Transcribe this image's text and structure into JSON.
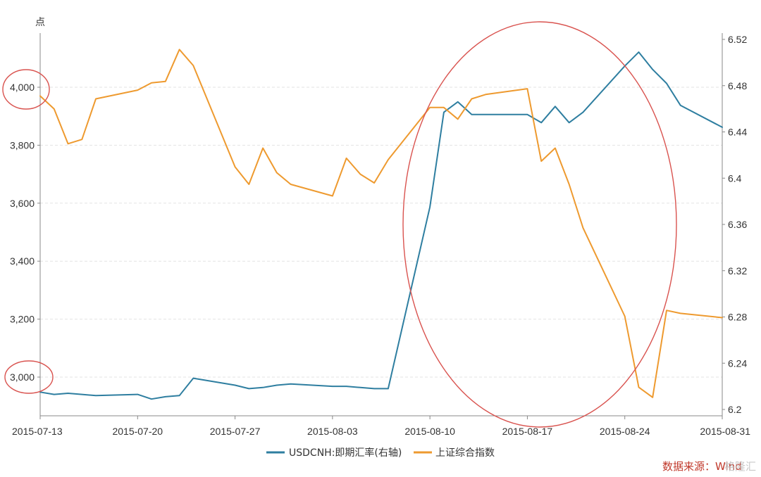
{
  "chart_data": {
    "type": "line",
    "left_axis_unit": "点",
    "x": [
      "2015-07-13",
      "2015-07-14",
      "2015-07-15",
      "2015-07-16",
      "2015-07-17",
      "2015-07-20",
      "2015-07-21",
      "2015-07-22",
      "2015-07-23",
      "2015-07-24",
      "2015-07-27",
      "2015-07-28",
      "2015-07-29",
      "2015-07-30",
      "2015-07-31",
      "2015-08-03",
      "2015-08-04",
      "2015-08-05",
      "2015-08-06",
      "2015-08-07",
      "2015-08-10",
      "2015-08-11",
      "2015-08-12",
      "2015-08-13",
      "2015-08-14",
      "2015-08-17",
      "2015-08-18",
      "2015-08-19",
      "2015-08-20",
      "2015-08-21",
      "2015-08-24",
      "2015-08-25",
      "2015-08-26",
      "2015-08-27",
      "2015-08-28",
      "2015-08-31"
    ],
    "x_ticks": [
      "2015-07-13",
      "2015-07-20",
      "2015-07-27",
      "2015-08-03",
      "2015-08-10",
      "2015-08-17",
      "2015-08-24",
      "2015-08-31"
    ],
    "xlim": [
      "2015-07-13",
      "2015-08-31"
    ],
    "y_left": {
      "ticks": [
        "3,000",
        "3,200",
        "3,400",
        "3,600",
        "3,800",
        "4,000"
      ],
      "lim": [
        2870,
        4200
      ],
      "tick_values": [
        3000,
        3200,
        3400,
        3600,
        3800,
        4000
      ]
    },
    "y_right": {
      "ticks": [
        "6.2",
        "6.24",
        "6.28",
        "6.32",
        "6.36",
        "6.4",
        "6.44",
        "6.48",
        "6.52"
      ],
      "lim": [
        6.2,
        6.52
      ],
      "tick_values": [
        6.2,
        6.24,
        6.28,
        6.32,
        6.36,
        6.4,
        6.44,
        6.48,
        6.52
      ]
    },
    "grid": true,
    "legend_position": "bottom",
    "series": [
      {
        "name": "USDCNH:即期汇率(右轴)",
        "axis": "right",
        "color": "#2e7ea0",
        "values": [
          6.215,
          6.213,
          6.214,
          6.213,
          6.212,
          6.213,
          6.209,
          6.211,
          6.212,
          6.227,
          6.221,
          6.218,
          6.219,
          6.221,
          6.222,
          6.22,
          6.22,
          6.219,
          6.218,
          6.218,
          6.375,
          6.457,
          6.466,
          6.455,
          6.455,
          6.455,
          6.448,
          6.462,
          6.448,
          6.457,
          6.497,
          6.509,
          6.494,
          6.482,
          6.463,
          6.444
        ]
      },
      {
        "name": "上证综合指数",
        "axis": "left",
        "color": "#ee9a2f",
        "values": [
          3970,
          3925,
          3805,
          3820,
          3960,
          3990,
          4015,
          4020,
          4130,
          4075,
          3725,
          3665,
          3790,
          3705,
          3665,
          3625,
          3755,
          3700,
          3670,
          3750,
          3930,
          3930,
          3890,
          3960,
          3975,
          3995,
          3745,
          3790,
          3665,
          3515,
          3210,
          2965,
          2930,
          3230,
          3220,
          3205
        ]
      }
    ]
  },
  "source_label": "数据来源：Wind",
  "watermark": "格隆汇",
  "colors": {
    "annotation_circle": "#d9534f",
    "axis": "#888888",
    "grid": "#e3e3e3"
  }
}
